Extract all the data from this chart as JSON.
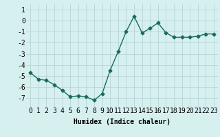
{
  "x": [
    0,
    1,
    2,
    3,
    4,
    5,
    6,
    7,
    8,
    9,
    10,
    11,
    12,
    13,
    14,
    15,
    16,
    17,
    18,
    19,
    20,
    21,
    22,
    23
  ],
  "y": [
    -4.7,
    -5.3,
    -5.4,
    -5.8,
    -6.3,
    -6.9,
    -6.8,
    -6.9,
    -7.2,
    -6.6,
    -4.5,
    -2.8,
    -1.0,
    0.4,
    -1.1,
    -0.7,
    -0.2,
    -1.1,
    -1.5,
    -1.5,
    -1.5,
    -1.4,
    -1.2,
    -1.2
  ],
  "line_color": "#1a6b5a",
  "marker": "D",
  "markersize": 2.5,
  "linewidth": 1.0,
  "bg_color": "#d6f0ef",
  "grid_color": "#b8d4d4",
  "xlabel": "Humidex (Indice chaleur)",
  "ylim": [
    -7.8,
    1.5
  ],
  "xlim": [
    -0.5,
    23.5
  ],
  "yticks": [
    1,
    0,
    -1,
    -2,
    -3,
    -4,
    -5,
    -6,
    -7
  ],
  "xtick_labels": [
    "0",
    "1",
    "2",
    "3",
    "4",
    "5",
    "6",
    "7",
    "8",
    "9",
    "10",
    "11",
    "12",
    "13",
    "14",
    "15",
    "16",
    "17",
    "18",
    "19",
    "20",
    "21",
    "22",
    "23"
  ],
  "xlabel_fontsize": 7,
  "tick_fontsize": 7
}
